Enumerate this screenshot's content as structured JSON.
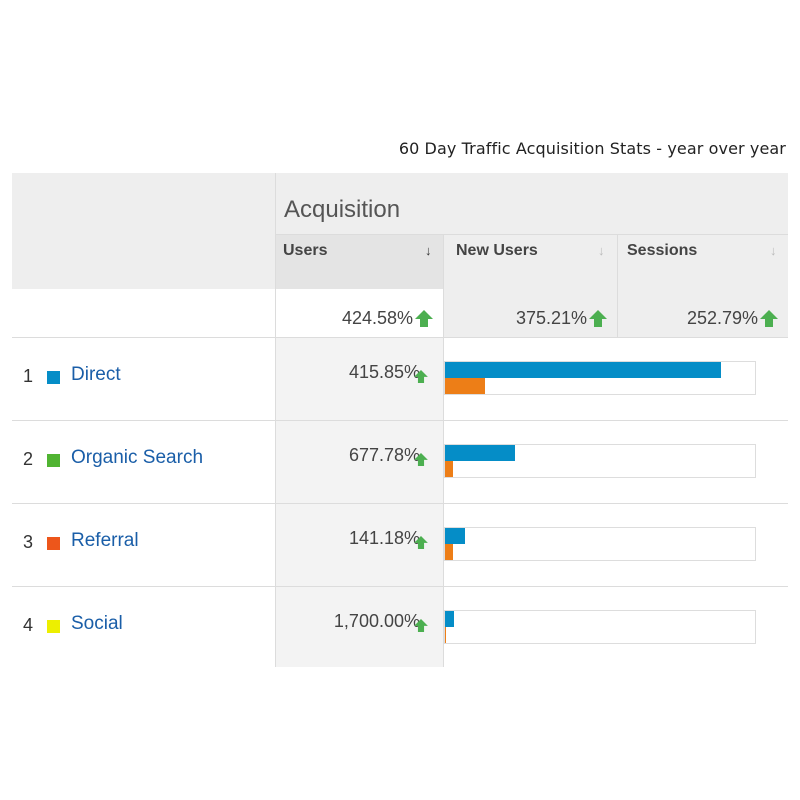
{
  "caption": "60 Day Traffic Acquisition Stats - year over year",
  "header": {
    "group_title": "Acquisition",
    "columns": [
      {
        "label": "Users",
        "sort": "↓"
      },
      {
        "label": "New Users",
        "sort": "↓"
      },
      {
        "label": "Sessions",
        "sort": "↓"
      }
    ]
  },
  "totals": {
    "users": "424.58%",
    "new_users": "375.21%",
    "sessions": "252.79%"
  },
  "colors": {
    "link": "#1a5ea8",
    "bar_current": "#058dc7",
    "bar_previous": "#ed7e17",
    "up_arrow": "#4caf50"
  },
  "rows": [
    {
      "rank": "1",
      "channel": "Direct",
      "swatch": "#058dc7",
      "users_change": "415.85%",
      "bar_current": 0.89,
      "bar_previous": 0.13
    },
    {
      "rank": "2",
      "channel": "Organic Search",
      "swatch": "#50b432",
      "users_change": "677.78%",
      "bar_current": 0.225,
      "bar_previous": 0.026
    },
    {
      "rank": "3",
      "channel": "Referral",
      "swatch": "#ed561b",
      "users_change": "141.18%",
      "bar_current": 0.065,
      "bar_previous": 0.026
    },
    {
      "rank": "4",
      "channel": "Social",
      "swatch": "#edef00",
      "users_change": "1,700.00%",
      "bar_current": 0.029,
      "bar_previous": 0.003
    }
  ]
}
